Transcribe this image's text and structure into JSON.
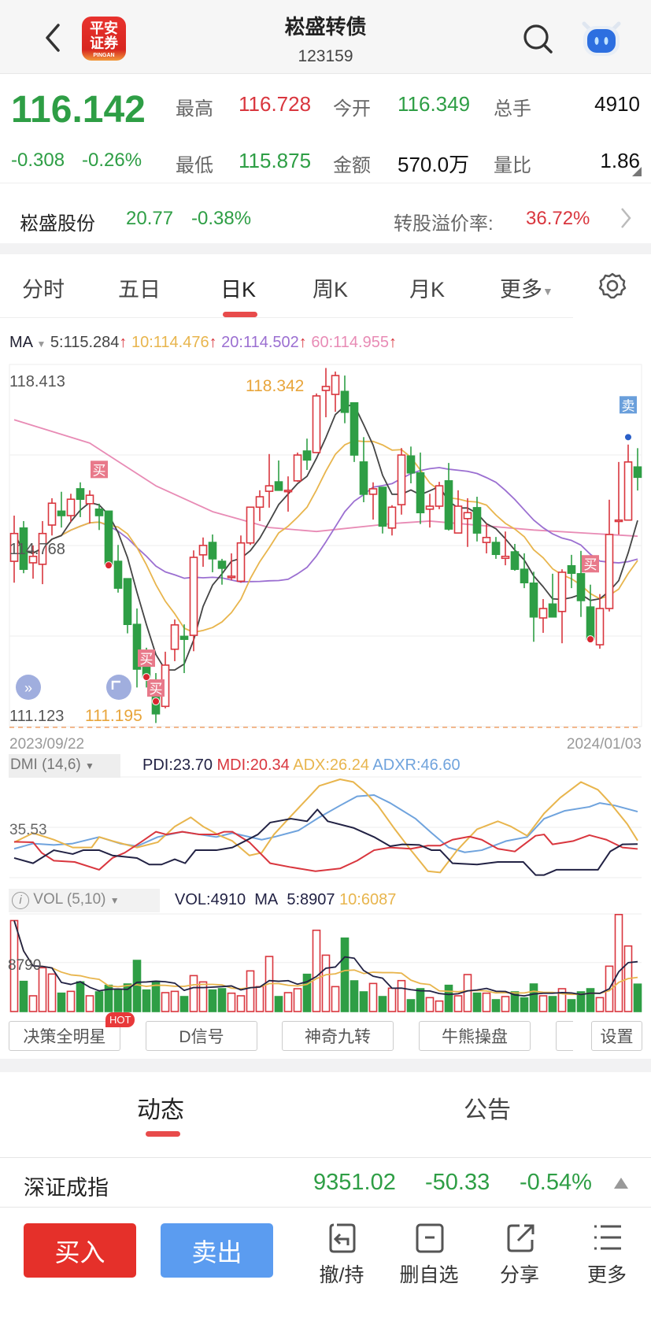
{
  "header": {
    "title": "崧盛转债",
    "code": "123159",
    "logo_text": "平安证券",
    "logo_sub": "PINGAN"
  },
  "quote": {
    "price": "116.142",
    "change": "-0.308",
    "change_pct": "-0.26%",
    "high_label": "最高",
    "high": "116.728",
    "open_label": "今开",
    "open": "116.349",
    "volume_label": "总手",
    "volume": "4910",
    "low_label": "最低",
    "low": "115.875",
    "amount_label": "金额",
    "amount": "570.0万",
    "ratio_label": "量比",
    "ratio": "1.86"
  },
  "stock": {
    "name": "崧盛股份",
    "price": "20.77",
    "change_pct": "-0.38%",
    "premium_label": "转股溢价率:",
    "premium": "36.72%"
  },
  "tabs": [
    {
      "label": "分时"
    },
    {
      "label": "五日"
    },
    {
      "label": "日K",
      "active": true
    },
    {
      "label": "周K"
    },
    {
      "label": "月K"
    },
    {
      "label": "更多"
    }
  ],
  "ma_legend": {
    "label": "MA",
    "ma5": "5:115.284",
    "ma10": "10:114.476",
    "ma20": "20:114.502",
    "ma60": "60:114.955",
    "arrow": "↑"
  },
  "colors": {
    "up": "#d9363e",
    "down": "#2e9e45",
    "ma5": "#444444",
    "ma10": "#e8b54d",
    "ma20": "#9b6fd1",
    "ma60": "#e88bb5",
    "pdi": "#222244",
    "mdi": "#d9363e",
    "adx": "#e8b54d",
    "adxr": "#6fa3dd",
    "accent": "#e84b4b",
    "sell_blue": "#5b9cf0"
  },
  "chart_data": {
    "type": "candlestick",
    "ylim": [
      111.123,
      118.413
    ],
    "y_labels": [
      "118.413",
      "114.768",
      "111.123"
    ],
    "max_label": "118.342",
    "min_label": "111.195",
    "start_date": "2023/09/22",
    "end_date": "2024/01/03",
    "candles_ohlc": [
      [
        114.45,
        115.37,
        114.02,
        115.01
      ],
      [
        115.12,
        115.26,
        114.21,
        114.29
      ],
      [
        114.42,
        114.77,
        114.1,
        114.55
      ],
      [
        114.39,
        115.26,
        113.99,
        115.01
      ],
      [
        115.18,
        115.72,
        114.97,
        115.62
      ],
      [
        115.46,
        115.85,
        115.13,
        115.37
      ],
      [
        115.37,
        115.81,
        115.24,
        115.7
      ],
      [
        115.91,
        116.04,
        115.34,
        115.7
      ],
      [
        115.61,
        115.88,
        115.21,
        115.78
      ],
      [
        115.5,
        115.61,
        115.08,
        115.37
      ],
      [
        115.46,
        115.46,
        114.37,
        114.39
      ],
      [
        114.45,
        114.78,
        113.82,
        113.91
      ],
      [
        114.1,
        114.1,
        113.0,
        113.18
      ],
      [
        113.18,
        113.5,
        111.91,
        112.28
      ],
      [
        112.39,
        112.71,
        111.91,
        112.12
      ],
      [
        111.98,
        112.2,
        111.195,
        111.38
      ],
      [
        111.53,
        112.63,
        111.49,
        112.36
      ],
      [
        112.68,
        113.28,
        112.44,
        113.17
      ],
      [
        112.94,
        113.18,
        112.2,
        112.88
      ],
      [
        112.96,
        114.67,
        112.64,
        114.53
      ],
      [
        114.58,
        114.93,
        114.34,
        114.77
      ],
      [
        114.83,
        114.99,
        114.23,
        114.5
      ],
      [
        114.45,
        114.5,
        113.98,
        114.31
      ],
      [
        114.13,
        114.61,
        114.07,
        114.15
      ],
      [
        114.05,
        114.97,
        114.02,
        114.82
      ],
      [
        114.82,
        115.54,
        114.78,
        115.54
      ],
      [
        115.54,
        115.88,
        115.26,
        115.75
      ],
      [
        115.86,
        116.61,
        115.53,
        115.97
      ],
      [
        116.05,
        116.48,
        115.88,
        115.88
      ],
      [
        115.86,
        116.16,
        115.45,
        115.88
      ],
      [
        116.07,
        116.64,
        116.05,
        116.59
      ],
      [
        116.67,
        116.92,
        116.29,
        116.49
      ],
      [
        116.64,
        117.83,
        116.64,
        117.78
      ],
      [
        117.89,
        118.342,
        117.35,
        117.97
      ],
      [
        117.81,
        118.27,
        117.46,
        118.19
      ],
      [
        117.87,
        118.19,
        117.23,
        117.45
      ],
      [
        117.64,
        117.64,
        116.45,
        116.59
      ],
      [
        116.45,
        116.95,
        115.64,
        115.8
      ],
      [
        115.8,
        116.04,
        115.29,
        115.91
      ],
      [
        115.94,
        115.94,
        115.01,
        115.16
      ],
      [
        115.12,
        115.58,
        114.97,
        115.54
      ],
      [
        115.59,
        116.73,
        115.39,
        116.59
      ],
      [
        116.57,
        116.76,
        116.02,
        116.23
      ],
      [
        116.23,
        116.64,
        115.2,
        115.43
      ],
      [
        115.5,
        115.81,
        115.13,
        115.56
      ],
      [
        115.56,
        116.05,
        115.5,
        115.97
      ],
      [
        116.07,
        116.43,
        115.07,
        115.1
      ],
      [
        115.02,
        115.88,
        115.02,
        115.56
      ],
      [
        115.31,
        115.72,
        114.74,
        115.43
      ],
      [
        115.53,
        115.75,
        114.85,
        115.02
      ],
      [
        114.83,
        115.21,
        114.61,
        114.93
      ],
      [
        114.83,
        114.94,
        114.5,
        114.59
      ],
      [
        114.51,
        115.05,
        114.37,
        114.55
      ],
      [
        114.64,
        114.8,
        114.26,
        114.29
      ],
      [
        114.29,
        114.61,
        113.91,
        114.02
      ],
      [
        114.01,
        114.24,
        112.83,
        113.33
      ],
      [
        113.31,
        113.69,
        113.01,
        113.5
      ],
      [
        113.59,
        114.2,
        113.33,
        113.33
      ],
      [
        113.44,
        114.29,
        112.8,
        114.23
      ],
      [
        114.36,
        114.58,
        113.91,
        114.21
      ],
      [
        114.2,
        114.66,
        113.33,
        113.66
      ],
      [
        113.53,
        113.98,
        112.83,
        112.88
      ],
      [
        112.77,
        113.79,
        112.69,
        113.5
      ],
      [
        113.5,
        115.69,
        113.44,
        114.99
      ],
      [
        115.26,
        116.45,
        114.99,
        115.28
      ],
      [
        115.28,
        116.8,
        115.28,
        116.45
      ],
      [
        116.349,
        116.728,
        115.875,
        116.142
      ]
    ],
    "ma60_approx": [
      [
        0,
        117.3
      ],
      [
        8,
        116.83
      ],
      [
        15,
        115.97
      ],
      [
        21,
        115.45
      ],
      [
        27,
        115.13
      ],
      [
        32,
        115.05
      ],
      [
        40,
        115.21
      ],
      [
        44,
        115.26
      ],
      [
        55,
        115.08
      ],
      [
        66,
        114.955
      ]
    ],
    "signals": [
      {
        "index": 9,
        "label": "买",
        "type": "buy",
        "price": 116.3
      },
      {
        "index": 14,
        "label": "买",
        "type": "buy",
        "price": 112.5
      },
      {
        "index": 15,
        "label": "买",
        "type": "buy",
        "price": 111.9
      },
      {
        "index": 61,
        "label": "买",
        "type": "buy",
        "price": 114.4
      },
      {
        "index": 65,
        "label": "卖",
        "type": "sell",
        "price": 117.6
      }
    ],
    "dots": [
      {
        "index": 10,
        "price": 114.37,
        "color": "red"
      },
      {
        "index": 14,
        "price": 112.12,
        "color": "red"
      },
      {
        "index": 15,
        "price": 111.63,
        "color": "red"
      },
      {
        "index": 61,
        "price": 112.88,
        "color": "red"
      },
      {
        "index": 65,
        "price": 116.95,
        "color": "blue"
      }
    ],
    "dmi": {
      "header": "DMI (14,6)",
      "pdi_label": "PDI:23.70",
      "mdi_label": "MDI:20.34",
      "adx_label": "ADX:26.24",
      "adxr_label": "ADXR:46.60",
      "grid_label": "35.53",
      "ylim": [
        0,
        71.06
      ],
      "pdi": [
        [
          0,
          13.9
        ],
        [
          2,
          10.2
        ],
        [
          4.2,
          19.4
        ],
        [
          6.2,
          16.7
        ],
        [
          7.3,
          19.4
        ],
        [
          9,
          19.4
        ],
        [
          10.4,
          15.7
        ],
        [
          13,
          13.9
        ],
        [
          14.3,
          9.3
        ],
        [
          15.6,
          9.3
        ],
        [
          17,
          13
        ],
        [
          18.1,
          10.2
        ],
        [
          19.2,
          19.4
        ],
        [
          21.4,
          19.4
        ],
        [
          23.1,
          21.3
        ],
        [
          25.8,
          30.5
        ],
        [
          27.1,
          38.9
        ],
        [
          29.3,
          41.6
        ],
        [
          31,
          39.8
        ],
        [
          32.1,
          48.1
        ],
        [
          33.2,
          39.8
        ],
        [
          35.9,
          35.2
        ],
        [
          38.1,
          28.7
        ],
        [
          39.8,
          22.2
        ],
        [
          41.1,
          23.5
        ],
        [
          42.9,
          23.1
        ],
        [
          44.2,
          19.4
        ],
        [
          45.1,
          19.4
        ],
        [
          46.4,
          10.2
        ],
        [
          49,
          9.3
        ],
        [
          51.2,
          11.1
        ],
        [
          53.9,
          11.1
        ],
        [
          55.2,
          1.9
        ],
        [
          56.1,
          1.9
        ],
        [
          57.4,
          5.6
        ],
        [
          61.8,
          5.6
        ],
        [
          63.1,
          18.5
        ],
        [
          64.4,
          23.5
        ],
        [
          66,
          23.7
        ]
      ],
      "mdi": [
        [
          0,
          25.3
        ],
        [
          2,
          25
        ],
        [
          2.9,
          17.6
        ],
        [
          4.2,
          12
        ],
        [
          6.4,
          11.1
        ],
        [
          9,
          5.6
        ],
        [
          10.4,
          13.9
        ],
        [
          11.7,
          17.6
        ],
        [
          13.4,
          25
        ],
        [
          15,
          32.4
        ],
        [
          16.1,
          30.5
        ],
        [
          17.8,
          32.4
        ],
        [
          19.6,
          30.5
        ],
        [
          21.4,
          30.5
        ],
        [
          22.2,
          32.4
        ],
        [
          23.1,
          32.4
        ],
        [
          24.9,
          25
        ],
        [
          27.1,
          10.2
        ],
        [
          29.3,
          7.4
        ],
        [
          31.9,
          4.6
        ],
        [
          34.5,
          6.5
        ],
        [
          36.3,
          12
        ],
        [
          38.1,
          19.4
        ],
        [
          39.8,
          21.3
        ],
        [
          42,
          20.4
        ],
        [
          43.8,
          22.6
        ],
        [
          45.1,
          22.6
        ],
        [
          46.4,
          26.8
        ],
        [
          48.2,
          29
        ],
        [
          49.5,
          26.8
        ],
        [
          51.2,
          20.4
        ],
        [
          53,
          18.5
        ],
        [
          55.2,
          29.6
        ],
        [
          56.1,
          30.5
        ],
        [
          57,
          23.5
        ],
        [
          59.2,
          25.9
        ],
        [
          60.9,
          30
        ],
        [
          62.7,
          26.8
        ],
        [
          64.4,
          21.3
        ],
        [
          66,
          20.3
        ]
      ],
      "adx": [
        [
          0,
          25
        ],
        [
          2,
          31.5
        ],
        [
          4.2,
          26.8
        ],
        [
          6.2,
          21.3
        ],
        [
          8.2,
          21.3
        ],
        [
          9,
          28.7
        ],
        [
          10.4,
          25.9
        ],
        [
          13,
          21.3
        ],
        [
          15.2,
          25
        ],
        [
          17,
          36.1
        ],
        [
          18.7,
          42.6
        ],
        [
          20,
          36.1
        ],
        [
          21.8,
          29.6
        ],
        [
          23.1,
          25.9
        ],
        [
          24.9,
          15.7
        ],
        [
          26.2,
          17.6
        ],
        [
          27.5,
          30.5
        ],
        [
          29.3,
          43.5
        ],
        [
          31,
          55.5
        ],
        [
          32.3,
          64.8
        ],
        [
          34.5,
          69.4
        ],
        [
          35.9,
          67.5
        ],
        [
          37.2,
          60.1
        ],
        [
          38.5,
          50.9
        ],
        [
          40.3,
          34.2
        ],
        [
          42,
          19.4
        ],
        [
          43.8,
          4.6
        ],
        [
          45.1,
          3.7
        ],
        [
          46.9,
          19.4
        ],
        [
          49,
          34.2
        ],
        [
          51.2,
          39.8
        ],
        [
          52.6,
          36.1
        ],
        [
          54.3,
          29.6
        ],
        [
          56.1,
          45.3
        ],
        [
          57.8,
          56.4
        ],
        [
          60,
          67.5
        ],
        [
          61.8,
          62
        ],
        [
          63.1,
          52.7
        ],
        [
          64.9,
          37.9
        ],
        [
          66,
          26.2
        ]
      ],
      "adxr": [
        [
          0,
          20.4
        ],
        [
          2,
          24.1
        ],
        [
          4.2,
          23.1
        ],
        [
          6.2,
          24.1
        ],
        [
          9,
          28.7
        ],
        [
          11.2,
          24.1
        ],
        [
          13,
          22.2
        ],
        [
          15.2,
          28.7
        ],
        [
          17.8,
          32.4
        ],
        [
          21.4,
          28.7
        ],
        [
          23.1,
          31.5
        ],
        [
          26.2,
          26.8
        ],
        [
          27.5,
          28.7
        ],
        [
          30.1,
          33.3
        ],
        [
          32.3,
          42.6
        ],
        [
          34.5,
          50.9
        ],
        [
          36.3,
          57.4
        ],
        [
          38.1,
          58.3
        ],
        [
          39.8,
          52.7
        ],
        [
          42.5,
          41.6
        ],
        [
          44.2,
          31.5
        ],
        [
          46,
          21.3
        ],
        [
          47.7,
          17.9
        ],
        [
          49.5,
          19.4
        ],
        [
          52.1,
          25.9
        ],
        [
          54.3,
          28.7
        ],
        [
          56.1,
          41.6
        ],
        [
          58.3,
          47.2
        ],
        [
          60.9,
          50
        ],
        [
          62,
          52.7
        ],
        [
          63.6,
          50.9
        ],
        [
          66,
          46.6
        ]
      ]
    },
    "vol": {
      "header": "VOL (5,10)",
      "vol_label": "VOL:4910",
      "ma_label": "MA",
      "ma5_label": "5:8907",
      "ma10_label": "10:6087",
      "grid_label": "8790",
      "ylim": [
        0,
        17500
      ],
      "values": [
        16309,
        5405,
        2820,
        7849,
        6721,
        3290,
        3619,
        5311,
        2820,
        3525,
        4700,
        3854,
        4935,
        9165,
        3854,
        5405,
        3384,
        3619,
        2679,
        6439,
        5311,
        3854,
        4089,
        3290,
        2820,
        7285,
        4465,
        9870,
        2679,
        3384,
        4089,
        6674,
        14570,
        10105,
        4465,
        13160,
        5499,
        3525,
        5029,
        2679,
        4183,
        5546,
        2115,
        4089,
        2491,
        1880,
        4700,
        2820,
        6627,
        3290,
        3290,
        2115,
        2679,
        3525,
        2444,
        4935,
        2820,
        2679,
        4089,
        2115,
        3525,
        4089,
        2491,
        8131,
        17390,
        11750,
        4910
      ]
    }
  },
  "indicator_buttons": [
    {
      "label": "决策全明星",
      "badge": "HOT"
    },
    {
      "label": "D信号"
    },
    {
      "label": "神奇九转"
    },
    {
      "label": "牛熊操盘"
    },
    {
      "label": ""
    },
    {
      "label": "设置"
    }
  ],
  "content_tabs": [
    {
      "label": "动态",
      "active": true
    },
    {
      "label": "公告"
    }
  ],
  "index_ticker": {
    "name": "深证成指",
    "value": "9351.02",
    "change": "-50.33",
    "change_pct": "-0.54%"
  },
  "bottom_bar": {
    "buy": "买入",
    "sell": "卖出",
    "actions": [
      {
        "label": "撤/持",
        "icon": "cancel-hold-icon"
      },
      {
        "label": "删自选",
        "icon": "remove-watchlist-icon"
      },
      {
        "label": "分享",
        "icon": "share-icon"
      },
      {
        "label": "更多",
        "icon": "menu-icon"
      }
    ]
  }
}
